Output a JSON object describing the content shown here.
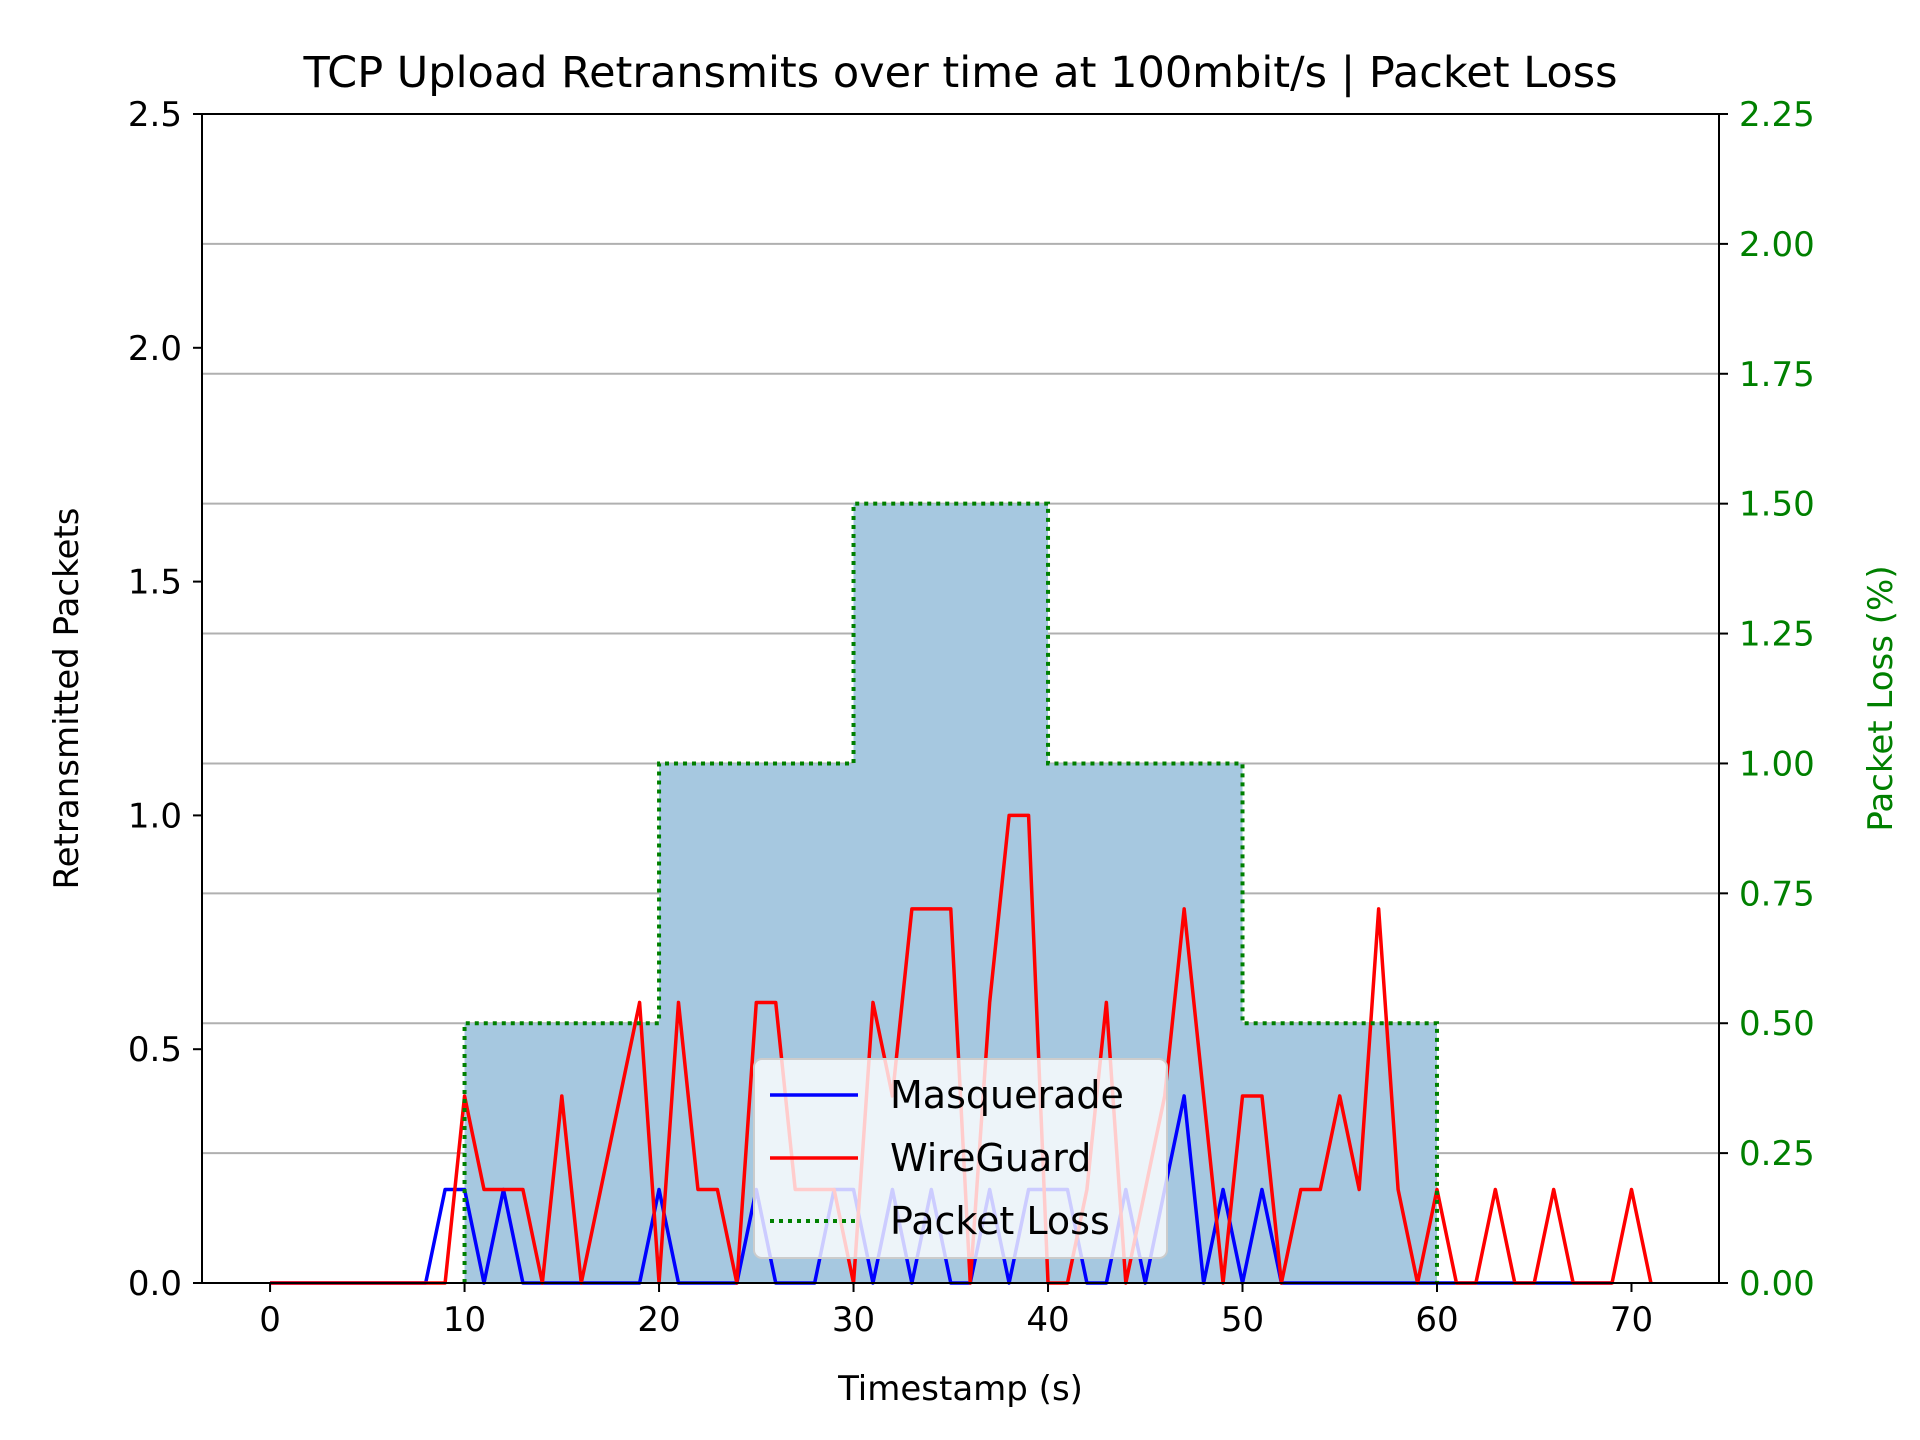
{
  "chart_data": {
    "type": "line",
    "title": "TCP Upload Retransmits over time at 100mbit/s | Packet Loss",
    "xlabel": "Timestamp (s)",
    "ylabel": "Retransmitted Packets",
    "y2label": "Packet Loss (%)",
    "xlim": [
      -3.5,
      74.5
    ],
    "ylim": [
      0,
      2.5
    ],
    "y2lim": [
      0,
      2.25
    ],
    "xticks": [
      0,
      10,
      20,
      30,
      40,
      50,
      60,
      70
    ],
    "xtick_labels": [
      "0",
      "10",
      "20",
      "30",
      "40",
      "50",
      "60",
      "70"
    ],
    "yticks": [
      0,
      0.5,
      1.0,
      1.5,
      2.0,
      2.5
    ],
    "ytick_labels": [
      "0.0",
      "0.5",
      "1.0",
      "1.5",
      "2.0",
      "2.5"
    ],
    "y2ticks": [
      0,
      0.25,
      0.5,
      0.75,
      1.0,
      1.25,
      1.5,
      1.75,
      2.0,
      2.25
    ],
    "y2tick_labels": [
      "0.00",
      "0.25",
      "0.50",
      "0.75",
      "1.00",
      "1.25",
      "1.50",
      "1.75",
      "2.00",
      "2.25"
    ],
    "grid": "horizontal (right axis)",
    "legend_position": "lower center",
    "colors": {
      "masquerade": "#0000ff",
      "wireguard": "#ff0000",
      "packet_loss": "#008000",
      "loss_fill": "#a6c8e0",
      "right_axis": "#008000"
    },
    "series": [
      {
        "name": "Masquerade",
        "x": [
          0,
          1,
          2,
          3,
          4,
          5,
          6,
          7,
          8,
          9,
          10,
          11,
          12,
          13,
          14,
          15,
          16,
          17,
          18,
          19,
          20,
          21,
          22,
          23,
          24,
          25,
          26,
          27,
          28,
          29,
          30,
          31,
          32,
          33,
          34,
          35,
          36,
          37,
          38,
          39,
          40,
          41,
          42,
          43,
          44,
          45,
          46,
          47,
          48,
          49,
          50,
          51,
          52,
          53,
          54,
          55,
          56,
          57,
          58,
          59,
          60,
          61,
          62,
          63,
          64,
          65,
          66,
          67,
          68,
          69
        ],
        "y": [
          0,
          0,
          0,
          0,
          0,
          0,
          0,
          0,
          0,
          0.2,
          0.2,
          0,
          0.2,
          0,
          0,
          0,
          0,
          0,
          0,
          0,
          0.2,
          0,
          0,
          0,
          0,
          0.2,
          0,
          0,
          0,
          0.2,
          0.2,
          0,
          0.2,
          0,
          0.2,
          0,
          0,
          0.2,
          0,
          0.2,
          0.2,
          0.2,
          0,
          0,
          0.2,
          0,
          0.2,
          0.4,
          0,
          0.2,
          0,
          0.2,
          0,
          0,
          0,
          0,
          0,
          0,
          0,
          0,
          0,
          0,
          0,
          0,
          0,
          0,
          0,
          0,
          0,
          0
        ]
      },
      {
        "name": "WireGuard",
        "x": [
          0,
          1,
          2,
          3,
          4,
          5,
          6,
          7,
          8,
          9,
          10,
          11,
          12,
          13,
          14,
          15,
          16,
          17,
          18,
          19,
          20,
          21,
          22,
          23,
          24,
          25,
          26,
          27,
          28,
          29,
          30,
          31,
          32,
          33,
          34,
          35,
          36,
          37,
          38,
          39,
          40,
          41,
          42,
          43,
          44,
          45,
          46,
          47,
          48,
          49,
          50,
          51,
          52,
          53,
          54,
          55,
          56,
          57,
          58,
          59,
          60,
          61,
          62,
          63,
          64,
          65,
          66,
          67,
          68,
          69,
          70,
          71
        ],
        "y": [
          0,
          0,
          0,
          0,
          0,
          0,
          0,
          0,
          0,
          0,
          0.4,
          0.2,
          0.2,
          0.2,
          0,
          0.4,
          0,
          0.2,
          0.4,
          0.6,
          0,
          0.6,
          0.2,
          0.2,
          0,
          0.6,
          0.6,
          0.2,
          0.2,
          0.2,
          0,
          0.6,
          0.4,
          0.8,
          0.8,
          0.8,
          0,
          0.6,
          1.0,
          1.0,
          0,
          0,
          0.2,
          0.6,
          0,
          0.2,
          0.4,
          0.8,
          0.4,
          0,
          0.4,
          0.4,
          0,
          0.2,
          0.2,
          0.4,
          0.2,
          0.8,
          0.2,
          0,
          0.2,
          0,
          0,
          0.2,
          0,
          0,
          0.2,
          0,
          0,
          0,
          0.2,
          0
        ]
      },
      {
        "name": "Packet Loss",
        "axis": "right",
        "style": "dotted step",
        "x": [
          10,
          20,
          30,
          40,
          50,
          60
        ],
        "y": [
          0.5,
          1.0,
          1.5,
          1.0,
          0.5,
          0
        ]
      }
    ]
  }
}
